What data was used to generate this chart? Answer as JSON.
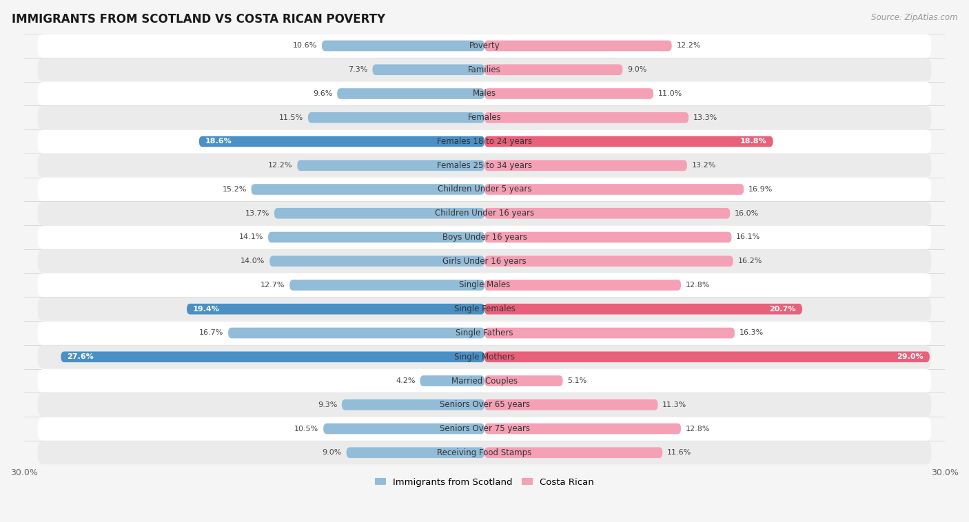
{
  "title": "IMMIGRANTS FROM SCOTLAND VS COSTA RICAN POVERTY",
  "source": "Source: ZipAtlas.com",
  "categories": [
    "Poverty",
    "Families",
    "Males",
    "Females",
    "Females 18 to 24 years",
    "Females 25 to 34 years",
    "Children Under 5 years",
    "Children Under 16 years",
    "Boys Under 16 years",
    "Girls Under 16 years",
    "Single Males",
    "Single Females",
    "Single Fathers",
    "Single Mothers",
    "Married Couples",
    "Seniors Over 65 years",
    "Seniors Over 75 years",
    "Receiving Food Stamps"
  ],
  "scotland_values": [
    10.6,
    7.3,
    9.6,
    11.5,
    18.6,
    12.2,
    15.2,
    13.7,
    14.1,
    14.0,
    12.7,
    19.4,
    16.7,
    27.6,
    4.2,
    9.3,
    10.5,
    9.0
  ],
  "costarican_values": [
    12.2,
    9.0,
    11.0,
    13.3,
    18.8,
    13.2,
    16.9,
    16.0,
    16.1,
    16.2,
    12.8,
    20.7,
    16.3,
    29.0,
    5.1,
    11.3,
    12.8,
    11.6
  ],
  "scotland_color": "#92bcd8",
  "costarican_color": "#f4a0b5",
  "scotland_highlight_color": "#4a90c4",
  "costarican_highlight_color": "#e8607a",
  "highlight_rows": [
    4,
    11,
    13
  ],
  "xlim": 30.0,
  "bg_color": "#f5f5f5",
  "row_color_light": "#ffffff",
  "row_color_dark": "#ebebeb",
  "label_fontsize": 8.5,
  "value_fontsize": 8.0,
  "legend_label_scotland": "Immigrants from Scotland",
  "legend_label_costarican": "Costa Rican"
}
